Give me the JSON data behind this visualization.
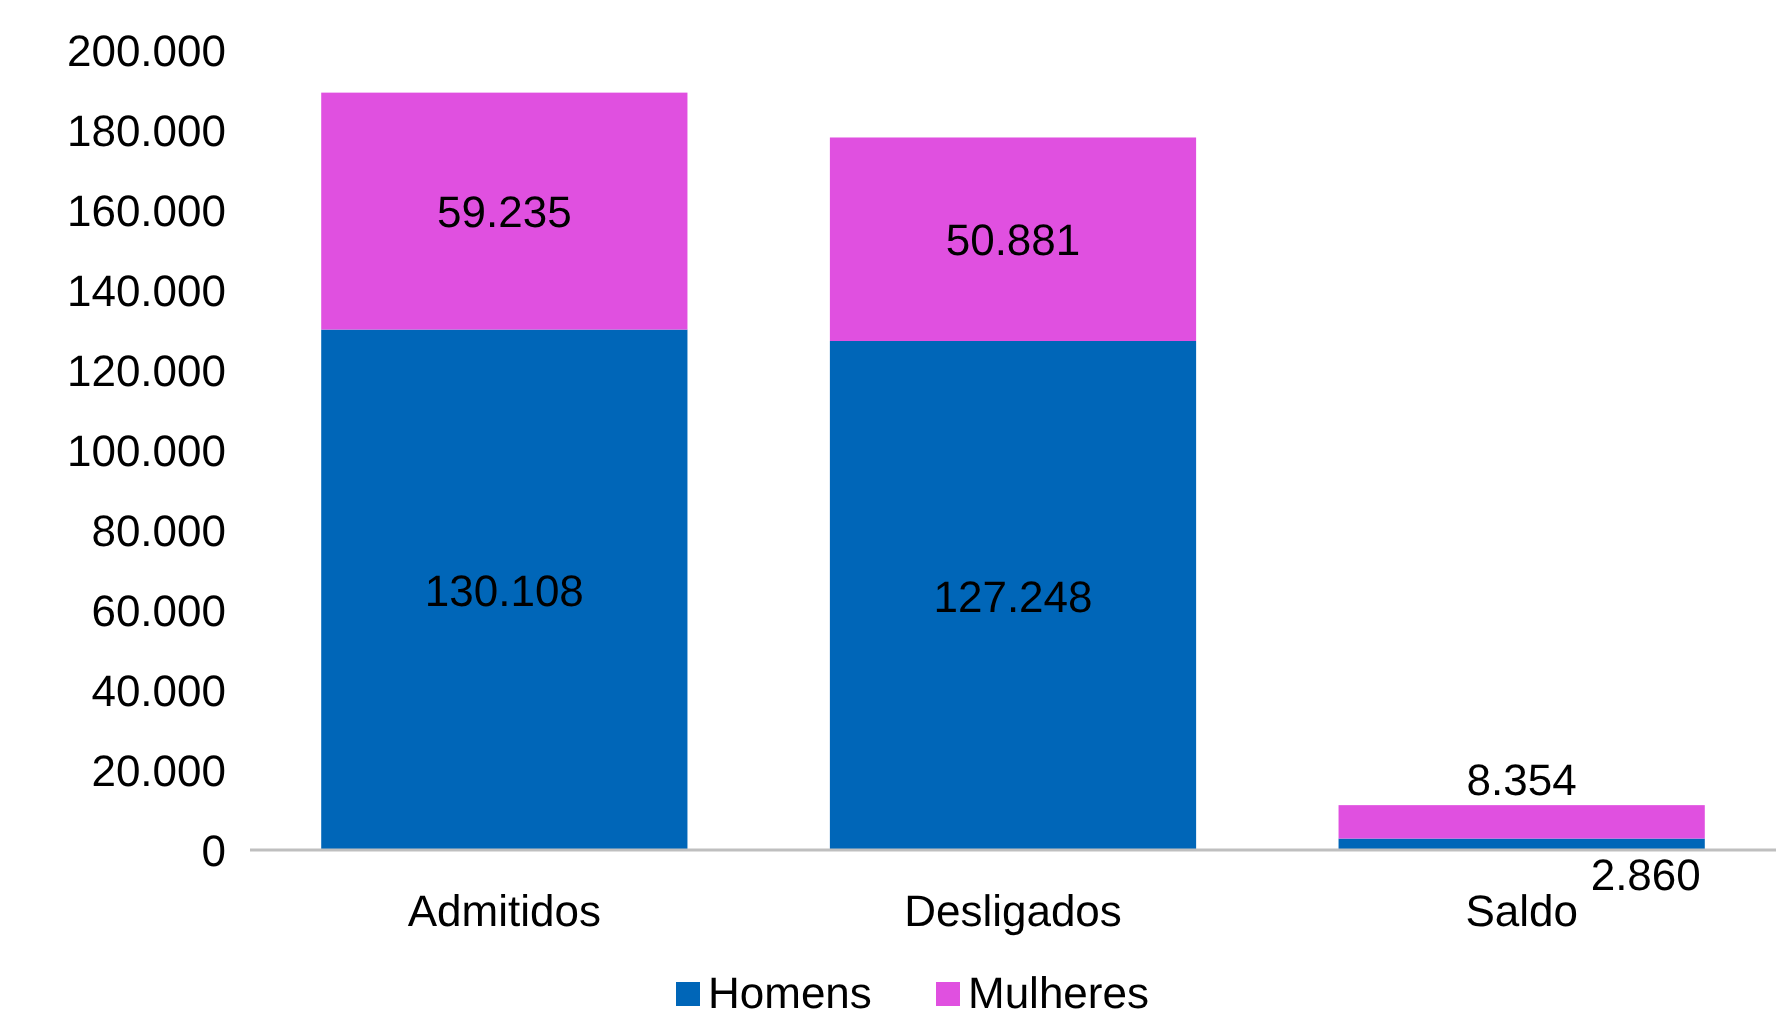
{
  "chart_data": {
    "type": "bar",
    "stacked": true,
    "categories": [
      "Admitidos",
      "Desligados",
      "Saldo"
    ],
    "series": [
      {
        "name": "Homens",
        "color": "#0066b8",
        "values": [
          130108,
          127248,
          2860
        ],
        "value_labels": [
          "130.108",
          "127.248",
          "2.860"
        ]
      },
      {
        "name": "Mulheres",
        "color": "#e050e0",
        "values": [
          59235,
          50881,
          8354
        ],
        "value_labels": [
          "59.235",
          "50.881",
          "8.354"
        ]
      }
    ],
    "ylim": [
      0,
      200000
    ],
    "yticks": [
      0,
      {
        "value": 20000,
        "label": "20.000"
      },
      {
        "value": 40000,
        "label": "40.000"
      },
      {
        "value": 60000,
        "label": "60.000"
      },
      {
        "value": 80000,
        "label": "80.000"
      },
      {
        "value": 100000,
        "label": "100.000"
      },
      {
        "value": 120000,
        "label": "120.000"
      },
      {
        "value": 140000,
        "label": "140.000"
      },
      {
        "value": 160000,
        "label": "160.000"
      },
      {
        "value": 180000,
        "label": "180.000"
      },
      {
        "value": 200000,
        "label": "200.000"
      }
    ],
    "grid": false,
    "legend": "bottom"
  }
}
